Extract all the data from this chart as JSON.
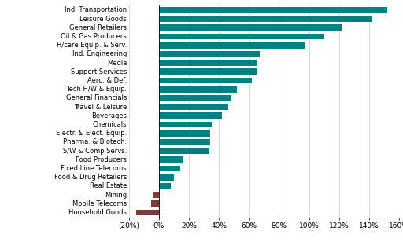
{
  "categories": [
    "Household Goods",
    "Mobile Telecoms",
    "Mining",
    "Real Estate",
    "Food & Drug Retailers",
    "Fixed Line Telecoms",
    "Food Producers",
    "S/W & Comp Servs.",
    "Pharma. & Biotech.",
    "Electr. & Elect. Equip.",
    "Chemicals",
    "Beverages",
    "Travel & Leisure",
    "General Financials",
    "Tech H/W & Equip.",
    "Aero. & Def.",
    "Support Services",
    "Media",
    "Ind. Engineering",
    "H/care Equip. & Serv.",
    "Oil & Gas Producers",
    "General Retailers",
    "Leisure Goods",
    "Ind. Transportation"
  ],
  "values": [
    -15,
    -5,
    -4,
    8,
    10,
    14,
    16,
    33,
    34,
    34,
    35,
    42,
    46,
    48,
    52,
    62,
    65,
    65,
    67,
    97,
    110,
    122,
    142,
    152
  ],
  "bar_color_positive": "#008080",
  "bar_color_negative": "#7B3B3B",
  "xlim": [
    -20,
    160
  ],
  "xticks": [
    -20,
    0,
    20,
    40,
    60,
    80,
    100,
    120,
    140,
    160
  ],
  "xticklabels": [
    "(20%)",
    "0%",
    "20%",
    "40%",
    "60%",
    "80%",
    "100%",
    "120%",
    "140%",
    "160%"
  ],
  "label_fontsize": 6.0,
  "tick_fontsize": 6.5,
  "bg_color": "#ffffff"
}
